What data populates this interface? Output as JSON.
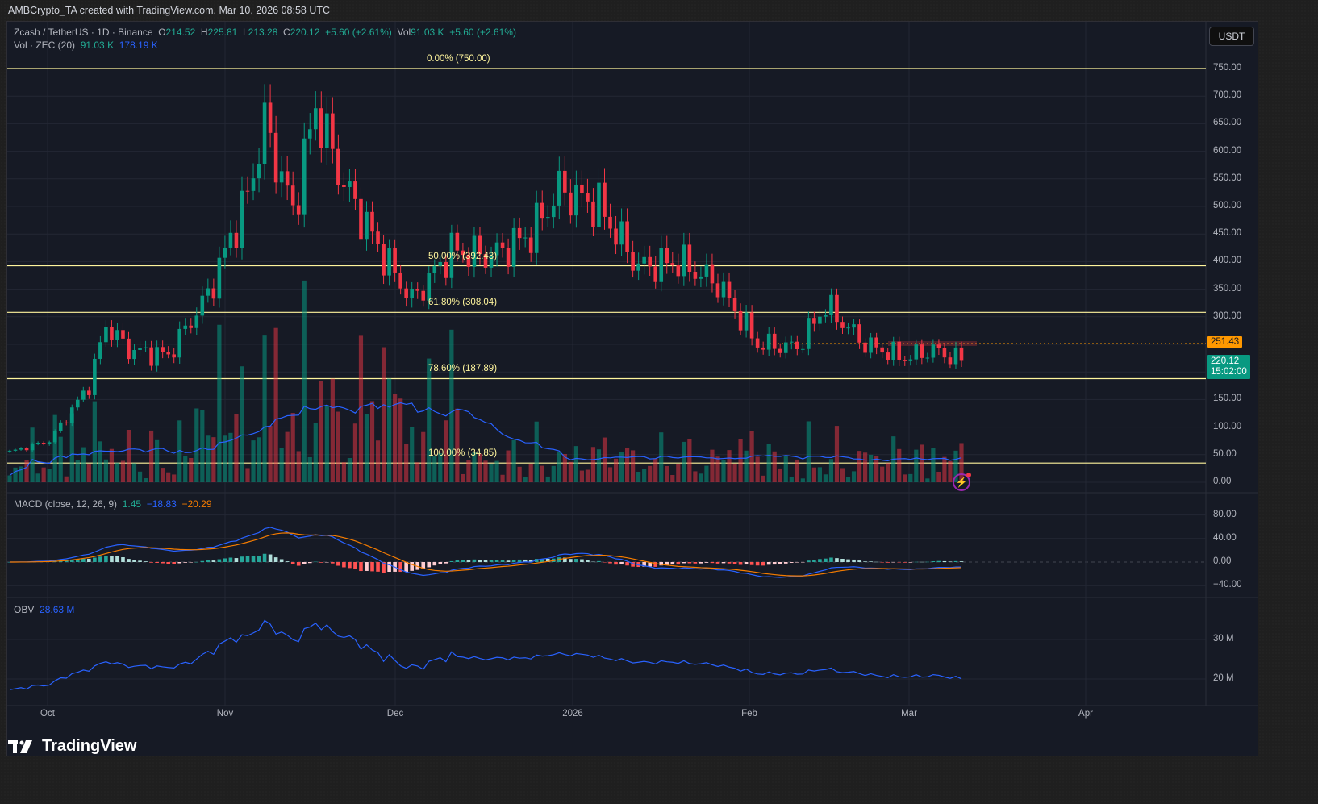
{
  "attribution": "AMBCrypto_TA created with TradingView.com, Mar 10, 2026 08:58 UTC",
  "header": {
    "symbol": "Zcash / TetherUS · 1D · Binance",
    "open_label": "O",
    "open": "214.52",
    "high_label": "H",
    "high": "225.81",
    "low_label": "L",
    "low": "213.28",
    "close_label": "C",
    "close": "220.12",
    "change": "+5.60 (+2.61%)",
    "vol_label": "Vol",
    "vol": "91.03 K",
    "vol_change": "+5.60 (+2.61%)"
  },
  "volume_legend": {
    "label": "Vol · ZEC (20)",
    "value": "91.03 K",
    "ma": "178.19 K"
  },
  "macd_legend": {
    "label": "MACD (close, 12, 26, 9)",
    "hist": "1.45",
    "macd": "−18.83",
    "signal": "−20.29"
  },
  "obv_legend": {
    "label": "OBV",
    "value": "28.63 M"
  },
  "currency_button": "USDT",
  "price_axis": [
    "750.00",
    "700.00",
    "650.00",
    "600.00",
    "550.00",
    "500.00",
    "450.00",
    "400.00",
    "350.00",
    "300.00",
    "150.00",
    "100.00",
    "50.00",
    "0.00"
  ],
  "macd_axis": [
    "80.00",
    "40.00",
    "0.00",
    "−40.00"
  ],
  "obv_axis": [
    "30 M",
    "20 M"
  ],
  "time_axis": [
    "Oct",
    "Nov",
    "Dec",
    "2026",
    "Feb",
    "Mar",
    "Apr"
  ],
  "price_tags": {
    "alert": {
      "value": "251.43",
      "color": "#ff9800"
    },
    "last": {
      "value": "220.12",
      "countdown": "15:02:00",
      "color": "#089981"
    }
  },
  "fib_levels": [
    {
      "label": "0.00% (750.00)",
      "price": 750.0
    },
    {
      "label": "50.00% (392.43)",
      "price": 392.43
    },
    {
      "label": "61.80% (308.04)",
      "price": 308.04
    },
    {
      "label": "78.60% (187.89)",
      "price": 187.89
    },
    {
      "label": "100.00% (34.85)",
      "price": 34.85
    }
  ],
  "colors": {
    "up": "#089981",
    "down": "#f23645",
    "fib": "#fff59d",
    "macd": "#2962ff",
    "signal": "#f57c00",
    "obv": "#2962ff"
  },
  "brand": "TradingView",
  "chart_data": {
    "type": "candlestick",
    "title": "Zcash / TetherUS · 1D · Binance",
    "ylabel": "USDT",
    "ylim": [
      0,
      780
    ],
    "x_ticks": [
      "Oct",
      "Nov",
      "Dec",
      "2026",
      "Feb",
      "Mar",
      "Apr"
    ],
    "approx_weekly_closes": [
      {
        "date": "Sep 23",
        "close": 55
      },
      {
        "date": "Sep 30",
        "close": 75
      },
      {
        "date": "Oct 7",
        "close": 175
      },
      {
        "date": "Oct 10",
        "close": 285
      },
      {
        "date": "Oct 14",
        "close": 240
      },
      {
        "date": "Oct 21",
        "close": 230
      },
      {
        "date": "Oct 28",
        "close": 340
      },
      {
        "date": "Nov 4",
        "close": 520
      },
      {
        "date": "Nov 7",
        "close": 650
      },
      {
        "date": "Nov 12",
        "close": 490
      },
      {
        "date": "Nov 16",
        "close": 680
      },
      {
        "date": "Nov 21",
        "close": 540
      },
      {
        "date": "Nov 28",
        "close": 410
      },
      {
        "date": "Dec 3",
        "close": 330
      },
      {
        "date": "Dec 10",
        "close": 420
      },
      {
        "date": "Dec 17",
        "close": 410
      },
      {
        "date": "Dec 24",
        "close": 450
      },
      {
        "date": "Dec 29",
        "close": 530
      },
      {
        "date": "Jan 5",
        "close": 500
      },
      {
        "date": "Jan 12",
        "close": 390
      },
      {
        "date": "Jan 19",
        "close": 400
      },
      {
        "date": "Jan 26",
        "close": 360
      },
      {
        "date": "Feb 2",
        "close": 250
      },
      {
        "date": "Feb 9",
        "close": 245
      },
      {
        "date": "Feb 14",
        "close": 320
      },
      {
        "date": "Feb 21",
        "close": 250
      },
      {
        "date": "Feb 28",
        "close": 225
      },
      {
        "date": "Mar 5",
        "close": 240
      },
      {
        "date": "Mar 10",
        "close": 220.12
      }
    ],
    "annotations": [
      "Fib retracement 0% 750.00",
      "50% 392.43",
      "61.8% 308.04",
      "78.6% 187.89",
      "100% 34.85",
      "Alert line 251.43"
    ],
    "indicators": {
      "volume_ma20": "178.19K",
      "macd": {
        "params": "close,12,26,9",
        "hist": 1.45,
        "macd": -18.83,
        "signal": -20.29,
        "ylim": [
          -50,
          100
        ]
      },
      "obv": {
        "value": "28.63M",
        "ylim": [
          "15M",
          "37M"
        ]
      }
    }
  }
}
